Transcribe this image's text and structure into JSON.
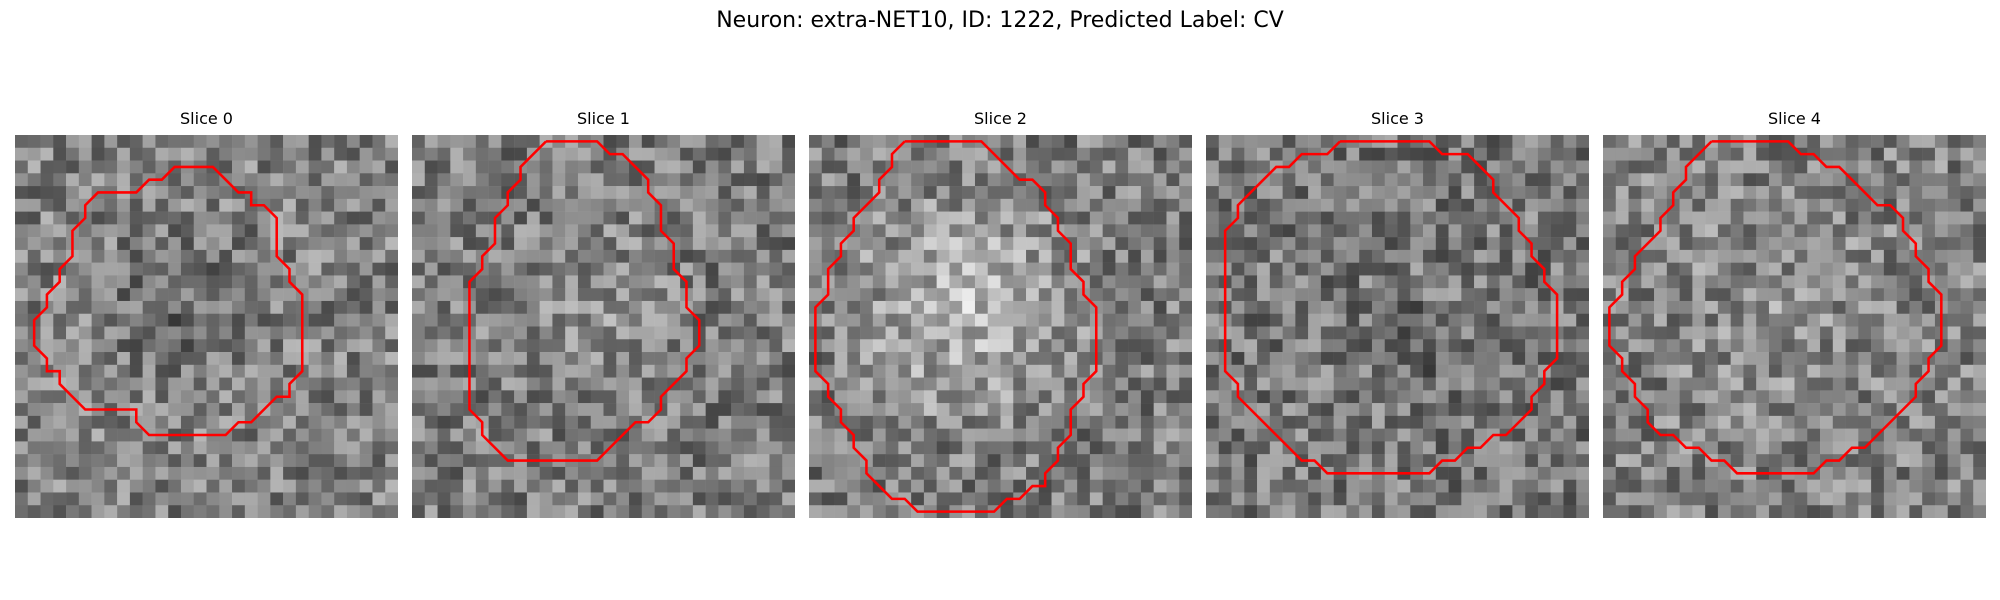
{
  "figure": {
    "title": "Neuron: extra-NET10, ID: 1222, Predicted Label: CV"
  },
  "contour_color": "#ff0000",
  "panels": [
    {
      "title": "Slice 0",
      "contour": [
        [
          13.5,
          2.5
        ],
        [
          15.5,
          2.5
        ],
        [
          17.5,
          4.5
        ],
        [
          18.5,
          4.5
        ],
        [
          18.5,
          5.5
        ],
        [
          19.5,
          5.5
        ],
        [
          20.5,
          6.5
        ],
        [
          20.5,
          9.5
        ],
        [
          21.5,
          10.5
        ],
        [
          21.5,
          11.5
        ],
        [
          22.5,
          12.5
        ],
        [
          22.5,
          18.5
        ],
        [
          21.5,
          19.5
        ],
        [
          21.5,
          20.5
        ],
        [
          20.5,
          20.5
        ],
        [
          19.5,
          21.5
        ],
        [
          18.5,
          22.5
        ],
        [
          17.5,
          22.5
        ],
        [
          16.5,
          23.5
        ],
        [
          10.5,
          23.5
        ],
        [
          9.5,
          22.5
        ],
        [
          9.5,
          21.5
        ],
        [
          5.5,
          21.5
        ],
        [
          4.5,
          20.5
        ],
        [
          3.5,
          19.5
        ],
        [
          3.5,
          18.5
        ],
        [
          2.5,
          18.5
        ],
        [
          2.5,
          17.5
        ],
        [
          1.5,
          16.5
        ],
        [
          1.5,
          14.5
        ],
        [
          2.5,
          13.5
        ],
        [
          2.5,
          12.5
        ],
        [
          3.5,
          11.5
        ],
        [
          3.5,
          10.5
        ],
        [
          4.5,
          9.5
        ],
        [
          4.5,
          7.5
        ],
        [
          5.5,
          6.5
        ],
        [
          5.5,
          5.5
        ],
        [
          6.5,
          4.5
        ],
        [
          9.5,
          4.5
        ],
        [
          10.5,
          3.5
        ],
        [
          11.5,
          3.5
        ],
        [
          12.5,
          2.5
        ]
      ]
    },
    {
      "title": "Slice 1",
      "contour": [
        [
          10.5,
          0.5
        ],
        [
          14.5,
          0.5
        ],
        [
          15.5,
          1.5
        ],
        [
          16.5,
          1.5
        ],
        [
          17.5,
          2.5
        ],
        [
          18.5,
          3.5
        ],
        [
          18.5,
          4.5
        ],
        [
          19.5,
          5.5
        ],
        [
          19.5,
          7.5
        ],
        [
          20.5,
          8.5
        ],
        [
          20.5,
          10.5
        ],
        [
          21.5,
          11.5
        ],
        [
          21.5,
          13.5
        ],
        [
          22.5,
          14.5
        ],
        [
          22.5,
          16.5
        ],
        [
          21.5,
          17.5
        ],
        [
          21.5,
          18.5
        ],
        [
          20.5,
          19.5
        ],
        [
          19.5,
          20.5
        ],
        [
          19.5,
          21.5
        ],
        [
          18.5,
          22.5
        ],
        [
          17.5,
          22.5
        ],
        [
          16.5,
          23.5
        ],
        [
          15.5,
          24.5
        ],
        [
          14.5,
          25.5
        ],
        [
          7.5,
          25.5
        ],
        [
          6.5,
          24.5
        ],
        [
          5.5,
          23.5
        ],
        [
          5.5,
          22.5
        ],
        [
          4.5,
          21.5
        ],
        [
          4.5,
          18.5
        ],
        [
          4.5,
          13.5
        ],
        [
          4.5,
          11.5
        ],
        [
          5.5,
          10.5
        ],
        [
          5.5,
          9.5
        ],
        [
          6.5,
          8.5
        ],
        [
          6.5,
          6.5
        ],
        [
          7.5,
          5.5
        ],
        [
          7.5,
          4.5
        ],
        [
          8.5,
          3.5
        ],
        [
          8.5,
          2.5
        ],
        [
          9.5,
          1.5
        ]
      ]
    },
    {
      "title": "Slice 2",
      "contour": [
        [
          7.5,
          0.5
        ],
        [
          13.5,
          0.5
        ],
        [
          14.5,
          1.5
        ],
        [
          15.5,
          2.5
        ],
        [
          16.5,
          3.5
        ],
        [
          17.5,
          3.5
        ],
        [
          18.5,
          4.5
        ],
        [
          18.5,
          5.5
        ],
        [
          19.5,
          6.5
        ],
        [
          19.5,
          7.5
        ],
        [
          20.5,
          8.5
        ],
        [
          20.5,
          10.5
        ],
        [
          21.5,
          11.5
        ],
        [
          21.5,
          12.5
        ],
        [
          22.5,
          13.5
        ],
        [
          22.5,
          18.5
        ],
        [
          21.5,
          19.5
        ],
        [
          21.5,
          20.5
        ],
        [
          20.5,
          21.5
        ],
        [
          20.5,
          23.5
        ],
        [
          19.5,
          24.5
        ],
        [
          19.5,
          25.5
        ],
        [
          18.5,
          26.5
        ],
        [
          18.5,
          27.5
        ],
        [
          17.5,
          27.5
        ],
        [
          16.5,
          28.5
        ],
        [
          15.5,
          28.5
        ],
        [
          14.5,
          29.5
        ],
        [
          8.5,
          29.5
        ],
        [
          7.5,
          28.5
        ],
        [
          6.5,
          28.5
        ],
        [
          5.5,
          27.5
        ],
        [
          4.5,
          26.5
        ],
        [
          4.5,
          25.5
        ],
        [
          3.5,
          24.5
        ],
        [
          3.5,
          23.5
        ],
        [
          2.5,
          22.5
        ],
        [
          2.5,
          21.5
        ],
        [
          1.5,
          20.5
        ],
        [
          1.5,
          19.5
        ],
        [
          0.5,
          18.5
        ],
        [
          0.5,
          13.5
        ],
        [
          1.5,
          12.5
        ],
        [
          1.5,
          10.5
        ],
        [
          2.5,
          9.5
        ],
        [
          2.5,
          8.5
        ],
        [
          3.5,
          7.5
        ],
        [
          3.5,
          6.5
        ],
        [
          4.5,
          5.5
        ],
        [
          5.5,
          4.5
        ],
        [
          5.5,
          3.5
        ],
        [
          6.5,
          2.5
        ],
        [
          6.5,
          1.5
        ]
      ]
    },
    {
      "title": "Slice 3",
      "contour": [
        [
          10.5,
          0.5
        ],
        [
          17.5,
          0.5
        ],
        [
          18.5,
          1.5
        ],
        [
          20.5,
          1.5
        ],
        [
          21.5,
          2.5
        ],
        [
          22.5,
          3.5
        ],
        [
          22.5,
          4.5
        ],
        [
          23.5,
          5.5
        ],
        [
          24.5,
          6.5
        ],
        [
          24.5,
          7.5
        ],
        [
          25.5,
          8.5
        ],
        [
          25.5,
          9.5
        ],
        [
          26.5,
          10.5
        ],
        [
          26.5,
          11.5
        ],
        [
          27.5,
          12.5
        ],
        [
          27.5,
          17.5
        ],
        [
          26.5,
          18.5
        ],
        [
          26.5,
          19.5
        ],
        [
          25.5,
          20.5
        ],
        [
          25.5,
          21.5
        ],
        [
          24.5,
          22.5
        ],
        [
          23.5,
          23.5
        ],
        [
          22.5,
          23.5
        ],
        [
          21.5,
          24.5
        ],
        [
          20.5,
          24.5
        ],
        [
          19.5,
          25.5
        ],
        [
          18.5,
          25.5
        ],
        [
          17.5,
          26.5
        ],
        [
          9.5,
          26.5
        ],
        [
          8.5,
          25.5
        ],
        [
          7.5,
          25.5
        ],
        [
          6.5,
          24.5
        ],
        [
          5.5,
          23.5
        ],
        [
          4.5,
          22.5
        ],
        [
          3.5,
          21.5
        ],
        [
          2.5,
          20.5
        ],
        [
          2.5,
          19.5
        ],
        [
          1.5,
          18.5
        ],
        [
          1.5,
          7.5
        ],
        [
          2.5,
          6.5
        ],
        [
          2.5,
          5.5
        ],
        [
          3.5,
          4.5
        ],
        [
          4.5,
          3.5
        ],
        [
          5.5,
          2.5
        ],
        [
          6.5,
          2.5
        ],
        [
          7.5,
          1.5
        ],
        [
          9.5,
          1.5
        ]
      ]
    },
    {
      "title": "Slice 4",
      "contour": [
        [
          8.5,
          0.5
        ],
        [
          14.5,
          0.5
        ],
        [
          15.5,
          1.5
        ],
        [
          16.5,
          1.5
        ],
        [
          17.5,
          2.5
        ],
        [
          18.5,
          2.5
        ],
        [
          19.5,
          3.5
        ],
        [
          20.5,
          4.5
        ],
        [
          21.5,
          5.5
        ],
        [
          22.5,
          5.5
        ],
        [
          23.5,
          6.5
        ],
        [
          23.5,
          7.5
        ],
        [
          24.5,
          8.5
        ],
        [
          24.5,
          9.5
        ],
        [
          25.5,
          10.5
        ],
        [
          25.5,
          11.5
        ],
        [
          26.5,
          12.5
        ],
        [
          26.5,
          16.5
        ],
        [
          25.5,
          17.5
        ],
        [
          25.5,
          18.5
        ],
        [
          24.5,
          19.5
        ],
        [
          24.5,
          20.5
        ],
        [
          23.5,
          21.5
        ],
        [
          22.5,
          22.5
        ],
        [
          21.5,
          23.5
        ],
        [
          20.5,
          24.5
        ],
        [
          19.5,
          24.5
        ],
        [
          18.5,
          25.5
        ],
        [
          17.5,
          25.5
        ],
        [
          16.5,
          26.5
        ],
        [
          10.5,
          26.5
        ],
        [
          9.5,
          25.5
        ],
        [
          8.5,
          25.5
        ],
        [
          7.5,
          24.5
        ],
        [
          6.5,
          24.5
        ],
        [
          5.5,
          23.5
        ],
        [
          4.5,
          23.5
        ],
        [
          3.5,
          22.5
        ],
        [
          3.5,
          21.5
        ],
        [
          2.5,
          20.5
        ],
        [
          2.5,
          19.5
        ],
        [
          1.5,
          18.5
        ],
        [
          1.5,
          17.5
        ],
        [
          0.5,
          16.5
        ],
        [
          0.5,
          13.5
        ],
        [
          1.5,
          12.5
        ],
        [
          1.5,
          11.5
        ],
        [
          2.5,
          10.5
        ],
        [
          2.5,
          9.5
        ],
        [
          3.5,
          8.5
        ],
        [
          4.5,
          7.5
        ],
        [
          4.5,
          6.5
        ],
        [
          5.5,
          5.5
        ],
        [
          5.5,
          4.5
        ],
        [
          6.5,
          3.5
        ],
        [
          6.5,
          2.5
        ],
        [
          7.5,
          1.5
        ]
      ]
    }
  ]
}
